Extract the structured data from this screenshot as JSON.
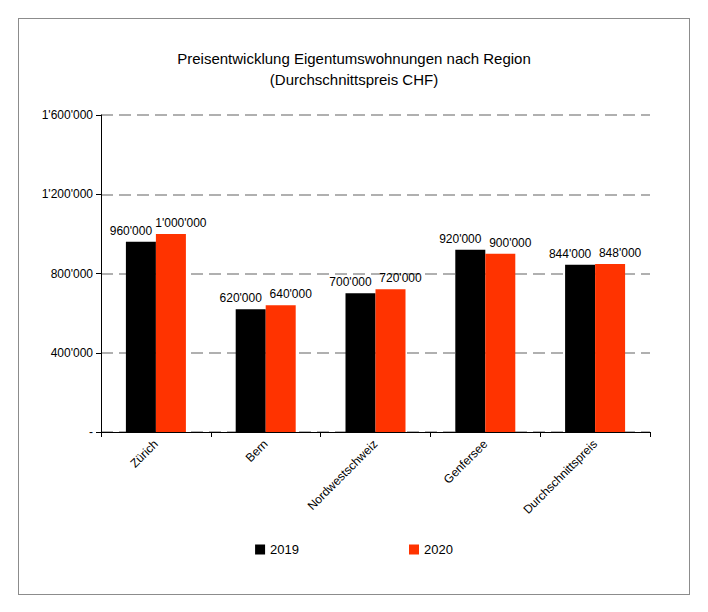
{
  "chart_data": {
    "type": "bar",
    "title": "Preisentwicklung Eigentumswohnungen nach Region",
    "subtitle": "(Durchschnittspreis CHF)",
    "categories": [
      "Zürich",
      "Bern",
      "Nordwestschweiz",
      "Genfersee",
      "Durchschnittspreis"
    ],
    "series": [
      {
        "name": "2019",
        "color": "#000000",
        "values": [
          960000,
          620000,
          700000,
          920000,
          844000
        ],
        "value_labels": [
          "960'000",
          "620'000",
          "700'000",
          "920'000",
          "844'000"
        ]
      },
      {
        "name": "2020",
        "color": "#ff3300",
        "values": [
          1000000,
          640000,
          720000,
          900000,
          848000
        ],
        "value_labels": [
          "1'000'000",
          "640'000",
          "720'000",
          "900'000",
          "848'000"
        ]
      }
    ],
    "ylim": [
      0,
      1600000
    ],
    "yticks": [
      {
        "value": 0,
        "label": "-"
      },
      {
        "value": 400000,
        "label": "400'000"
      },
      {
        "value": 800000,
        "label": "800'000"
      },
      {
        "value": 1200000,
        "label": "1'200'000"
      },
      {
        "value": 1600000,
        "label": "1'600'000"
      }
    ],
    "grid": true,
    "legend": "bottom",
    "data_labels": true
  }
}
